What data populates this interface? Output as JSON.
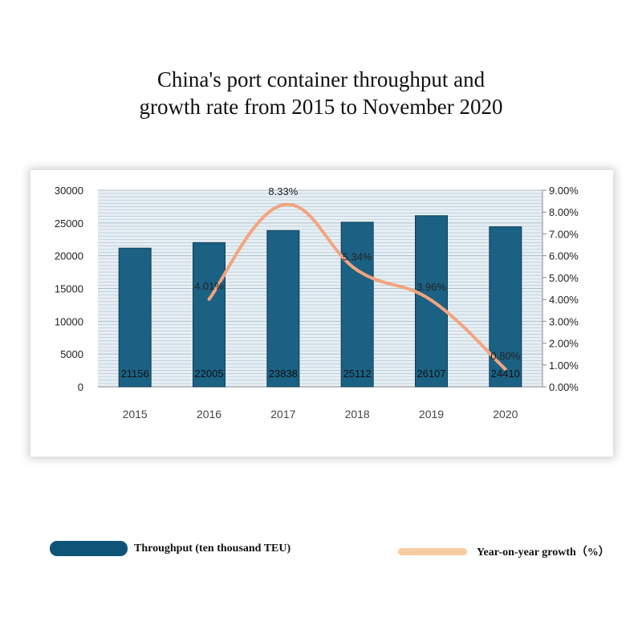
{
  "title": {
    "line1": "China's port container throughput and",
    "line2": "growth rate from 2015 to November 2020"
  },
  "legend": {
    "bar_label": "Throughput (ten thousand TEU)",
    "line_label": "Year-on-year growth（%）"
  },
  "colors": {
    "bar": "#1b6184",
    "bar_legend": "#0e5478",
    "line": "#f4a47f",
    "line_legend": "#f8cca0",
    "grid": "#a9c0cc",
    "plot_bg": "#e7eff4"
  },
  "chart_data": {
    "type": "bar",
    "categories": [
      "2015",
      "2016",
      "2017",
      "2018",
      "2019",
      "2020"
    ],
    "series": [
      {
        "name": "Throughput (ten thousand TEU)",
        "type": "bar",
        "axis": "left",
        "values": [
          21156,
          22005,
          23838,
          25112,
          26107,
          24410
        ],
        "labels": [
          "21156",
          "22005",
          "23838",
          "25112",
          "26107",
          "24410"
        ]
      },
      {
        "name": "Year-on-year growth（%）",
        "type": "line",
        "axis": "right",
        "x": [
          "2016",
          "2017",
          "2018",
          "2019",
          "2020"
        ],
        "values": [
          4.01,
          8.33,
          5.34,
          3.96,
          0.8
        ],
        "labels": [
          "4.01%",
          "8.33%",
          "5.34%",
          "3.96%",
          "0.80%"
        ]
      }
    ],
    "y_left": {
      "lim": [
        0,
        30000
      ],
      "ticks": [
        "0",
        "5000",
        "10000",
        "15000",
        "20000",
        "25000",
        "30000"
      ]
    },
    "y_right": {
      "lim": [
        0,
        9
      ],
      "ticks": [
        "0.00%",
        "1.00%",
        "2.00%",
        "3.00%",
        "4.00%",
        "5.00%",
        "6.00%",
        "7.00%",
        "8.00%",
        "9.00%"
      ]
    },
    "grid": true,
    "legend_position": "bottom"
  }
}
